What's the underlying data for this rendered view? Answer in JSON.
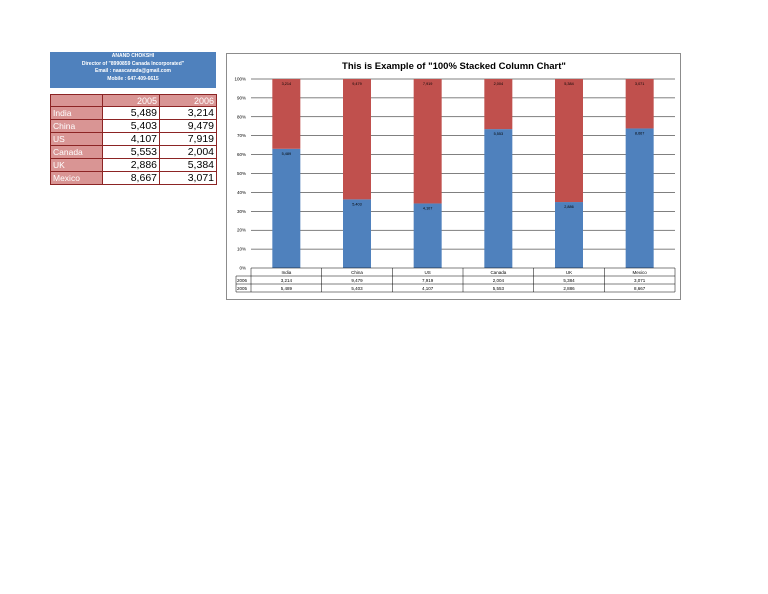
{
  "header": {
    "line1": "ANAND CHOKSHI",
    "line2": "Director of \"8990859 Canada Incorporated\"",
    "line3": "Email    : naascanada@gmail.com",
    "line4": "Mobile : 647-409-6615"
  },
  "table": {
    "headers": [
      "",
      "2005",
      "2006"
    ],
    "rows": [
      {
        "country": "India",
        "y2005": "5,489",
        "y2006": "3,214"
      },
      {
        "country": "China",
        "y2005": "5,403",
        "y2006": "9,479"
      },
      {
        "country": "US",
        "y2005": "4,107",
        "y2006": "7,919"
      },
      {
        "country": "Canada",
        "y2005": "5,553",
        "y2006": "2,004"
      },
      {
        "country": "UK",
        "y2005": "2,886",
        "y2006": "5,384"
      },
      {
        "country": "Mexico",
        "y2005": "8,667",
        "y2006": "3,071"
      }
    ]
  },
  "chart_data": {
    "type": "bar",
    "stacking": "percent",
    "title": "This is Example of \"100% Stacked Column Chart\"",
    "categories": [
      "India",
      "China",
      "US",
      "Canada",
      "UK",
      "Mexico"
    ],
    "series": [
      {
        "name": "2005",
        "color": "#4f81bd",
        "values": [
          5489,
          5403,
          4107,
          5553,
          2886,
          8667
        ],
        "labels": [
          "5,489",
          "5,403",
          "4,107",
          "5,553",
          "2,886",
          "8,667"
        ]
      },
      {
        "name": "2006",
        "color": "#c0504d",
        "values": [
          3214,
          9479,
          7919,
          2004,
          5384,
          3071
        ],
        "labels": [
          "3,214",
          "9,479",
          "7,919",
          "2,004",
          "5,384",
          "3,071"
        ]
      }
    ],
    "y_ticks": [
      "0%",
      "10%",
      "20%",
      "30%",
      "40%",
      "50%",
      "60%",
      "70%",
      "80%",
      "90%",
      "100%"
    ],
    "ylim": [
      0,
      100
    ],
    "grid": true,
    "data_table": true
  }
}
